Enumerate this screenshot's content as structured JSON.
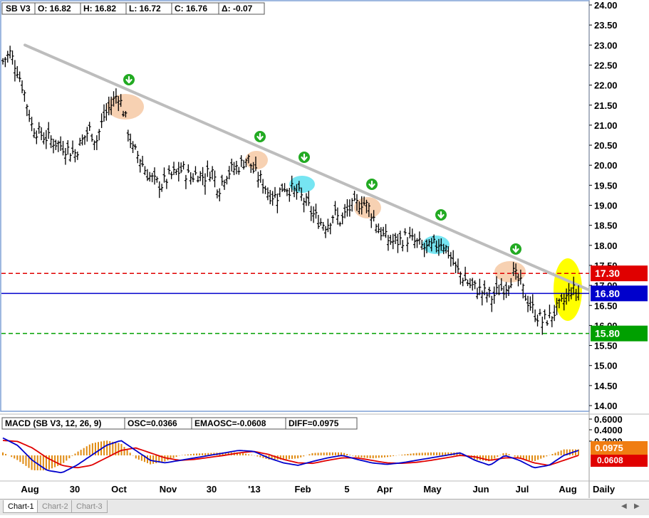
{
  "price_panel": {
    "symbol": "SB V3",
    "open": "O: 16.82",
    "high": "H: 16.82",
    "low": "L: 16.72",
    "close": "C: 16.76",
    "delta": "Δ: -0.07",
    "level_labels": [
      "17.30",
      "16.80",
      "15.80"
    ]
  },
  "macd_panel": {
    "label": "MACD (SB V3, 12, 26, 9)",
    "osc": "OSC=0.0366",
    "emaosc": "EMAOSC=-0.0608",
    "diff": "DIFF=0.0975",
    "value_badge": "0.0975",
    "value_badge_hidden": "0.0608"
  },
  "time_axis": {
    "labels": [
      "Aug",
      "30",
      "Oct",
      "Nov",
      "30",
      "'13",
      "Feb",
      "5",
      "Apr",
      "May",
      "Jun",
      "Jul",
      "Aug"
    ],
    "interval": "Daily"
  },
  "tabs": [
    "Chart-1",
    "Chart-2",
    "Chart-3"
  ],
  "colors": {
    "bars": "#000000",
    "trendline": "#bdbdbd",
    "resistance": "#e00000",
    "current_price": "#0000cc",
    "support": "#00a000",
    "macd_line": "#0000cc",
    "signal_line": "#e00000",
    "histogram": "#e08a10",
    "arrow": "#22aa22",
    "highlight_peach": "#f6c9a4",
    "highlight_cyan": "#5ee0f0",
    "highlight_yellow": "#ffff00"
  },
  "chart_data": [
    {
      "type": "line",
      "title": "SB V3 Daily",
      "ylim": [
        14.0,
        24.0
      ],
      "y_ticks": [
        "14.00",
        "14.50",
        "15.00",
        "15.50",
        "16.00",
        "16.50",
        "17.00",
        "17.50",
        "18.00",
        "18.50",
        "19.00",
        "19.50",
        "20.00",
        "20.50",
        "21.00",
        "21.50",
        "22.00",
        "22.50",
        "23.00",
        "23.50",
        "24.00"
      ],
      "x_ticks": [
        "Aug",
        "30",
        "Oct",
        "Nov",
        "30",
        "'13",
        "Feb",
        "5",
        "Apr",
        "May",
        "Jun",
        "Jul",
        "Aug"
      ],
      "close_path": [
        22.6,
        22.8,
        22.4,
        21.8,
        21.0,
        20.8,
        20.7,
        20.6,
        20.5,
        20.4,
        20.3,
        20.6,
        20.9,
        20.6,
        21.2,
        21.5,
        21.8,
        21.2,
        20.4,
        20.2,
        19.8,
        19.6,
        19.5,
        19.7,
        19.8,
        19.9,
        19.7,
        19.8,
        19.7,
        19.9,
        19.4,
        19.8,
        19.9,
        20.0,
        20.2,
        19.8,
        19.6,
        19.3,
        19.2,
        19.5,
        19.4,
        19.3,
        19.1,
        18.8,
        18.6,
        18.5,
        18.8,
        18.6,
        18.9,
        19.0,
        19.1,
        18.9,
        18.5,
        18.2,
        18.1,
        18.1,
        18.2,
        18.1,
        18.0,
        17.9,
        18.0,
        18.1,
        17.8,
        17.4,
        17.2,
        17.0,
        16.9,
        16.8,
        16.7,
        16.9,
        17.0,
        17.3,
        17.0,
        16.6,
        16.3,
        16.1,
        16.2,
        16.4,
        16.6,
        16.9,
        16.8
      ],
      "trendline": {
        "start": 23.0,
        "end": 16.9
      },
      "levels": [
        {
          "label": "17.30",
          "value": 17.3,
          "style": "dashed",
          "color": "#e00000"
        },
        {
          "label": "16.80",
          "value": 16.8,
          "style": "solid",
          "color": "#0000cc"
        },
        {
          "label": "15.80",
          "value": 15.8,
          "style": "dashed",
          "color": "#00a000"
        }
      ],
      "down_arrows": [
        "Oct",
        "'13",
        "Feb",
        "Apr",
        "May",
        "Jul"
      ],
      "highlights": [
        "peach",
        "peach",
        "cyan",
        "peach",
        "cyan",
        "peach",
        "yellow"
      ]
    },
    {
      "type": "line",
      "title": "MACD (SB V3, 12, 26, 9)",
      "y_ticks": [
        "0.6000",
        "0.4000",
        "0.2000"
      ],
      "series": [
        {
          "name": "MACD",
          "values": [
            0.35,
            0.2,
            -0.1,
            -0.3,
            -0.35,
            -0.2,
            0.0,
            0.2,
            0.3,
            0.1,
            -0.1,
            -0.15,
            -0.1,
            -0.05,
            0.0,
            0.05,
            0.1,
            0.08,
            -0.05,
            -0.15,
            -0.2,
            -0.12,
            -0.05,
            0.0,
            -0.08,
            -0.15,
            -0.18,
            -0.15,
            -0.1,
            -0.05,
            0.0,
            0.05,
            -0.1,
            -0.2,
            0.0,
            -0.1,
            -0.25,
            -0.2,
            0.0,
            0.1
          ]
        },
        {
          "name": "Signal",
          "values": [
            0.3,
            0.28,
            0.15,
            -0.05,
            -0.2,
            -0.25,
            -0.2,
            -0.05,
            0.1,
            0.15,
            0.05,
            -0.05,
            -0.1,
            -0.08,
            -0.04,
            0.0,
            0.05,
            0.08,
            0.02,
            -0.08,
            -0.15,
            -0.16,
            -0.1,
            -0.05,
            -0.05,
            -0.1,
            -0.15,
            -0.16,
            -0.14,
            -0.1,
            -0.05,
            0.0,
            -0.03,
            -0.1,
            -0.05,
            -0.05,
            -0.15,
            -0.2,
            -0.1,
            0.0
          ]
        }
      ],
      "histogram_label": "OSC",
      "values_shown": {
        "OSC": 0.0366,
        "EMAOSC": -0.0608,
        "DIFF": 0.0975
      }
    }
  ]
}
